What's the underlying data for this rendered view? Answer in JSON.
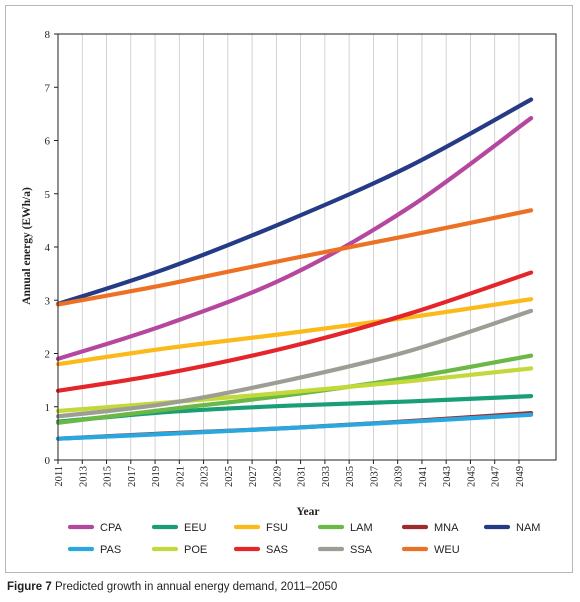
{
  "caption": {
    "label": "Figure 7",
    "text": "Predicted growth in annual energy demand, 2011–2050"
  },
  "chart_data": {
    "type": "line",
    "title": "",
    "xlabel": "Year",
    "ylabel": "Annual energy (EWh/a)",
    "xlim": [
      2011,
      2050
    ],
    "ylim": [
      0,
      8
    ],
    "y_ticks": [
      0,
      1,
      2,
      3,
      4,
      5,
      6,
      7,
      8
    ],
    "x_ticks": [
      "2011",
      "2013",
      "2015",
      "2017",
      "2019",
      "2021",
      "2023",
      "2025",
      "2027",
      "2029",
      "2031",
      "2033",
      "2035",
      "2037",
      "2039",
      "2041",
      "2043",
      "2045",
      "2047",
      "2049"
    ],
    "grid": "vertical",
    "legend_position": "bottom",
    "x": [
      2011,
      2020,
      2030,
      2040,
      2050
    ],
    "series": [
      {
        "name": "CPA",
        "color": "#b5479e",
        "values": [
          1.9,
          2.55,
          3.45,
          4.75,
          6.42
        ]
      },
      {
        "name": "EEU",
        "color": "#1a9e77",
        "values": [
          0.72,
          0.9,
          1.02,
          1.1,
          1.2
        ]
      },
      {
        "name": "FSU",
        "color": "#fbb91a",
        "values": [
          1.8,
          2.1,
          2.38,
          2.68,
          3.02
        ]
      },
      {
        "name": "LAM",
        "color": "#6ab846",
        "values": [
          0.7,
          0.95,
          1.22,
          1.55,
          1.96
        ]
      },
      {
        "name": "MNA",
        "color": "#9e2a2b",
        "values": [
          0.4,
          0.5,
          0.6,
          0.73,
          0.88
        ]
      },
      {
        "name": "NAM",
        "color": "#253b85",
        "values": [
          2.93,
          3.6,
          4.5,
          5.52,
          6.77
        ]
      },
      {
        "name": "PAS",
        "color": "#29a8e0",
        "values": [
          0.4,
          0.49,
          0.6,
          0.72,
          0.85
        ]
      },
      {
        "name": "POE",
        "color": "#c3d83a",
        "values": [
          0.92,
          1.08,
          1.27,
          1.48,
          1.72
        ]
      },
      {
        "name": "SAS",
        "color": "#e4262b",
        "values": [
          1.3,
          1.63,
          2.12,
          2.75,
          3.52
        ]
      },
      {
        "name": "SSA",
        "color": "#9d9d93",
        "values": [
          0.82,
          1.06,
          1.5,
          2.05,
          2.8
        ]
      },
      {
        "name": "WEU",
        "color": "#ec7125",
        "values": [
          2.92,
          3.3,
          3.77,
          4.22,
          4.69
        ]
      }
    ]
  }
}
